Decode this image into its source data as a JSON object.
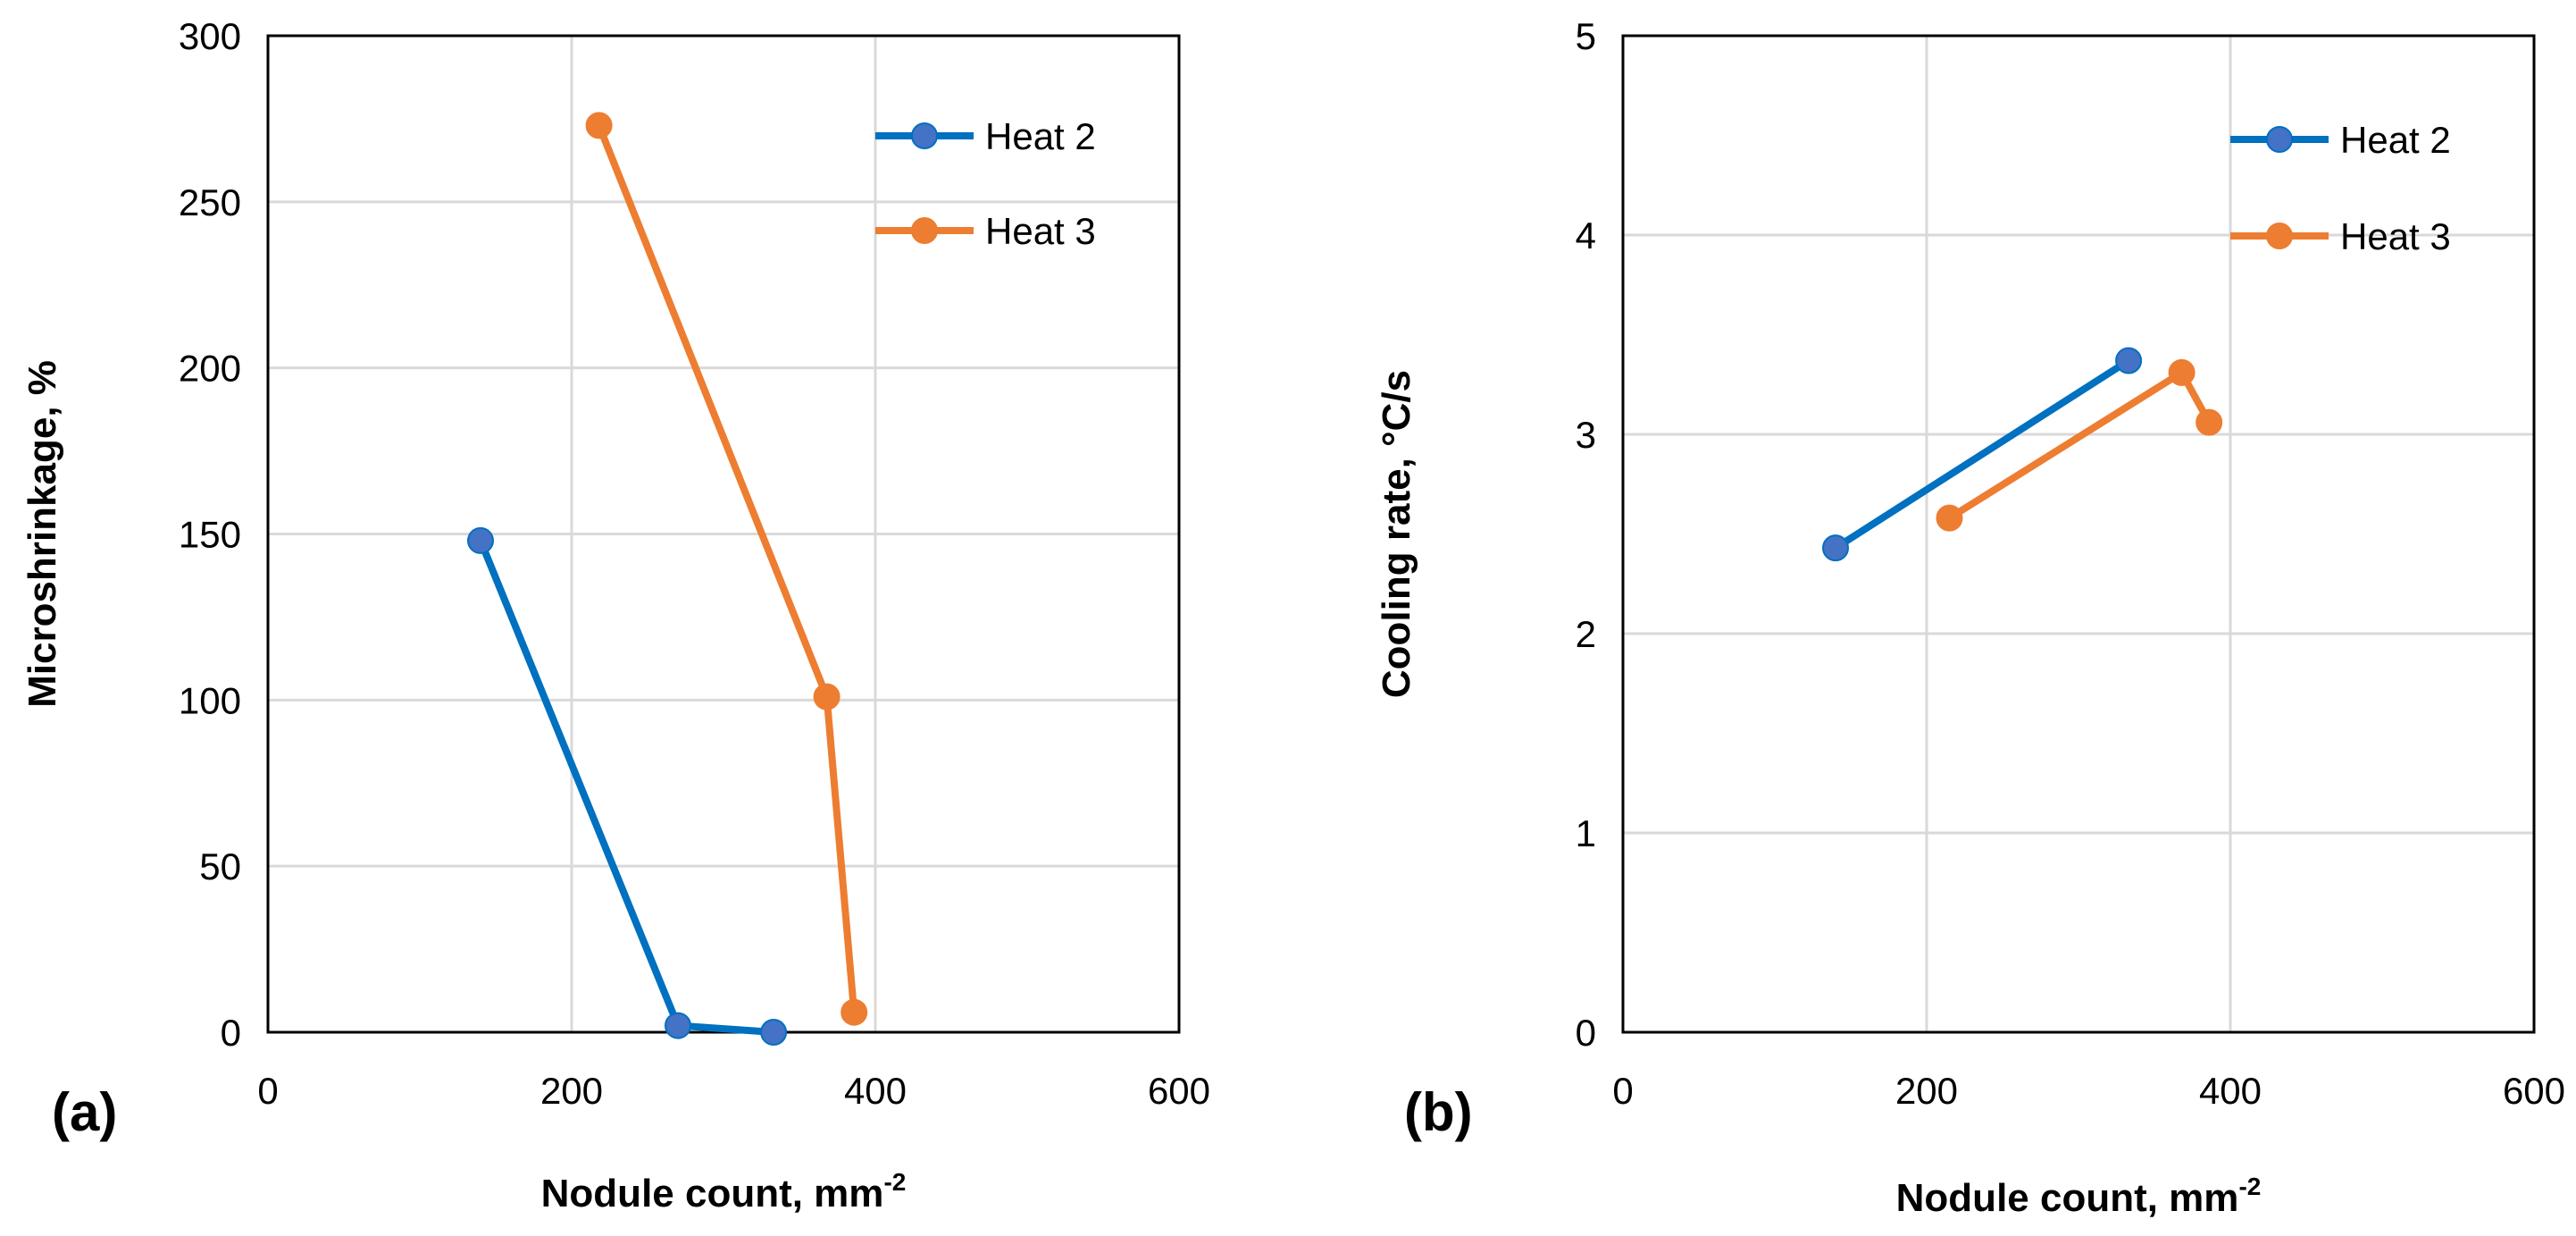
{
  "chart_data": [
    {
      "type": "line",
      "panel_label": "(a)",
      "xlabel": "Nodule count, mm",
      "xlabel_sup": "-2",
      "ylabel": "Microshrinkage, %",
      "xlim": [
        0,
        600
      ],
      "ylim": [
        0,
        300
      ],
      "xticks": [
        0,
        200,
        400,
        600
      ],
      "yticks": [
        0,
        50,
        100,
        150,
        200,
        250,
        300
      ],
      "grid": true,
      "legend_position": "top-right",
      "series": [
        {
          "name": "Heat 2",
          "color": "#0070C0",
          "marker_color": "#4472C4",
          "x": [
            140,
            270,
            333
          ],
          "y": [
            148,
            2,
            0
          ]
        },
        {
          "name": "Heat 3",
          "color": "#ED7D31",
          "marker_color": "#ED7D31",
          "x": [
            218,
            368,
            386
          ],
          "y": [
            273,
            101,
            6
          ]
        }
      ]
    },
    {
      "type": "line",
      "panel_label": "(b)",
      "xlabel": "Nodule count, mm",
      "xlabel_sup": "-2",
      "ylabel": "Cooling rate, °C/s",
      "xlim": [
        0,
        600
      ],
      "ylim": [
        0,
        5
      ],
      "xticks": [
        0,
        200,
        400,
        600
      ],
      "yticks": [
        0,
        1,
        2,
        3,
        4,
        5
      ],
      "grid": true,
      "legend_position": "top-right",
      "series": [
        {
          "name": "Heat 2",
          "color": "#0070C0",
          "marker_color": "#4472C4",
          "x": [
            140,
            333
          ],
          "y": [
            2.43,
            3.37
          ]
        },
        {
          "name": "Heat 3",
          "color": "#ED7D31",
          "marker_color": "#ED7D31",
          "x": [
            215,
            368,
            386
          ],
          "y": [
            2.58,
            3.31,
            3.06
          ]
        }
      ]
    }
  ]
}
